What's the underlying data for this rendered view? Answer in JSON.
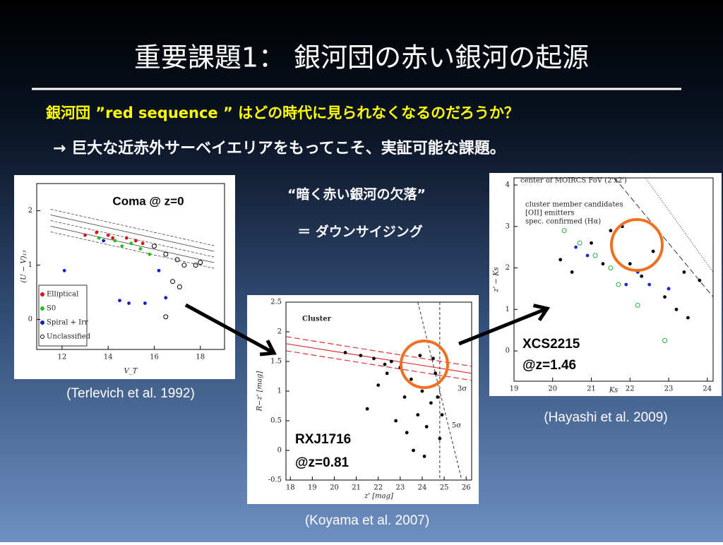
{
  "title": "重要課題1： 銀河団の赤い銀河の起源",
  "question": "銀河団 ”red sequence ” はどの時代に見られなくなるのだろうか？",
  "note": "→ 巨大な近赤外サーベイエリアをもってこそ、実証可能な課題。",
  "middle_texts": [
    "“暗く赤い銀河の欠落”",
    "＝ ダウンサイジング"
  ],
  "figures": [
    {
      "caption": "(Terlevich et al. 1992)",
      "annotations": [
        "Coma @ z=0"
      ],
      "xlabel": "V_T",
      "ylabel": "(U − V)₁₃",
      "xlim": [
        10.9,
        19.05
      ],
      "ylim": [
        -0.55,
        2.5
      ],
      "xticks": [
        12,
        14,
        16,
        18
      ],
      "yticks": [
        0,
        1,
        2
      ],
      "series": [
        {
          "name": "Elliptical",
          "color": "#e01010",
          "marker": "filled",
          "x": [
            13,
            13.5,
            14.2,
            14.8,
            15.2,
            15.5,
            14
          ],
          "y": [
            1.55,
            1.6,
            1.5,
            1.5,
            1.45,
            1.4,
            1.55
          ]
        },
        {
          "name": "S0",
          "color": "#20c020",
          "marker": "filled",
          "x": [
            14.3,
            14.6,
            15,
            15.4,
            15.8,
            13.6
          ],
          "y": [
            1.45,
            1.35,
            1.4,
            1.3,
            1.2,
            1.5
          ]
        },
        {
          "name": "Spiral + Irr",
          "color": "#1020c0",
          "marker": "filled",
          "x": [
            12.1,
            14.5,
            14.9,
            15.6,
            16.5,
            16.2,
            13.8
          ],
          "y": [
            0.9,
            0.35,
            0.3,
            0.3,
            0.4,
            0.9,
            1.45
          ]
        },
        {
          "name": "Unclassified",
          "color": "#000000",
          "marker": "open",
          "x": [
            16.5,
            17,
            17.3,
            17.8,
            16.8,
            17.1,
            16.5,
            18,
            16
          ],
          "y": [
            1.2,
            1.1,
            1.0,
            1.0,
            0.7,
            0.6,
            0.05,
            1.05,
            1.35
          ]
        }
      ]
    },
    {
      "caption": "(Koyama et al. 2007)",
      "annotations": [
        "RXJ1716",
        "@z=0.81"
      ],
      "labels": [
        "Cluster",
        "3σ",
        "5σ"
      ],
      "xlabel": "z' [mag]",
      "ylabel": "R−z' [mag]",
      "xlim": [
        17.8,
        26.25
      ],
      "ylim": [
        -0.5,
        2.5
      ],
      "xticks": [
        18,
        19,
        20,
        21,
        22,
        23,
        24,
        25,
        26
      ],
      "yticks": [
        -0.5,
        0,
        0.5,
        1,
        1.5,
        2,
        2.5
      ],
      "series": [
        {
          "color": "#000000",
          "marker": "filled",
          "x": [
            20.5,
            21.2,
            21.8,
            22.3,
            22.6,
            23,
            23.2,
            23.5,
            23.8,
            24,
            24.2,
            24.4,
            24.6,
            24.8,
            22,
            21.5,
            23.3,
            24.1,
            24.7,
            23.9,
            22.8,
            24.5,
            23.6,
            24.9,
            22.4
          ],
          "y": [
            1.65,
            1.6,
            1.55,
            1.45,
            1.5,
            1.4,
            0.9,
            1.2,
            0.6,
            1.0,
            0.4,
            0.8,
            1.3,
            0.2,
            1.1,
            0.7,
            0.3,
            -0.1,
            0.9,
            1.6,
            0.5,
            1.55,
            0.0,
            0.6,
            1.3
          ]
        }
      ]
    },
    {
      "caption": "(Hayashi et al. 2009)",
      "annotations": [
        "XCS2215",
        "@z=1.46"
      ],
      "labels": [
        "center of MOIRCS FoV (2'x2')"
      ],
      "xlabel": "Ks",
      "ylabel": "z' − Ks",
      "xlim": [
        19,
        24.15
      ],
      "ylim": [
        -0.73,
        4.17
      ],
      "xticks": [
        19,
        20,
        21,
        22,
        23,
        24
      ],
      "yticks": [
        0,
        1,
        2,
        3,
        4
      ],
      "series": [
        {
          "name": "cluster member candidates",
          "color": "#000000",
          "marker": "filled",
          "x": [
            20.2,
            20.5,
            21,
            21.3,
            21.5,
            22,
            22.3,
            22.6,
            23,
            23.2,
            23.5,
            23.8,
            21.8,
            22.9,
            23.4
          ],
          "y": [
            2.2,
            1.9,
            2.6,
            2.1,
            2.9,
            2.1,
            1.8,
            2.4,
            1.5,
            1.0,
            0.8,
            1.7,
            3.0,
            1.3,
            1.9
          ]
        },
        {
          "name": "[OII] emitters",
          "color": "#1a2cc8",
          "marker": "filled",
          "x": [
            20.6,
            20.9,
            21.9,
            22.2,
            22.5,
            23
          ],
          "y": [
            2.5,
            2.3,
            1.6,
            1.9,
            1.6,
            1.5
          ]
        },
        {
          "name": "spec. confirmed (Hα)",
          "color": "#22b040",
          "marker": "open",
          "x": [
            20.3,
            20.7,
            21.1,
            21.5,
            21.7,
            22.2,
            22.9
          ],
          "y": [
            2.9,
            2.6,
            2.3,
            2.0,
            1.6,
            1.1,
            0.25
          ]
        }
      ]
    }
  ]
}
